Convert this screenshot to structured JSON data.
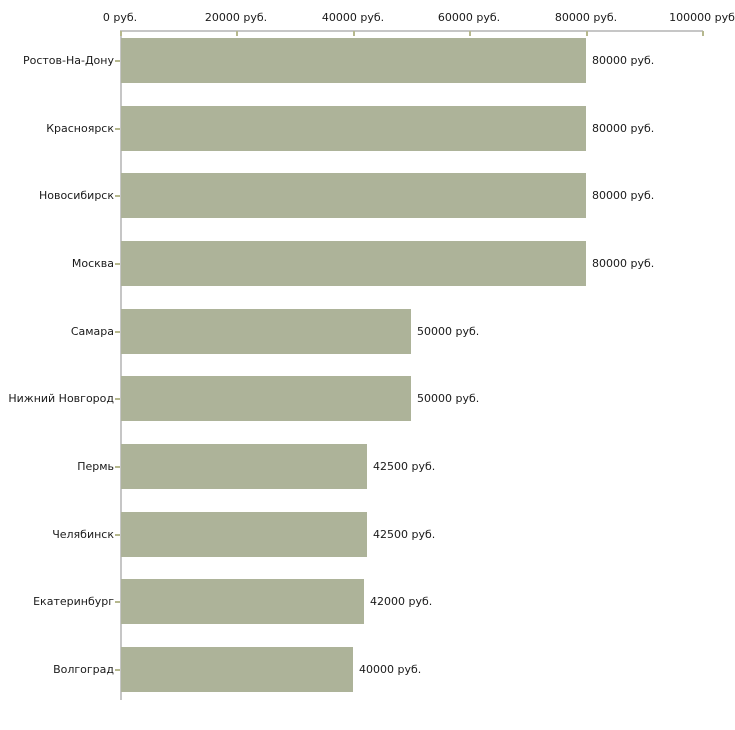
{
  "chart_data": {
    "type": "bar",
    "orientation": "horizontal",
    "categories": [
      "Ростов-На-Дону",
      "Красноярск",
      "Новосибирск",
      "Москва",
      "Самара",
      "Нижний Новгород",
      "Пермь",
      "Челябинск",
      "Екатеринбург",
      "Волгоград"
    ],
    "values": [
      80000,
      80000,
      80000,
      80000,
      50000,
      50000,
      42500,
      42500,
      42000,
      40000
    ],
    "value_labels": [
      "80000 руб.",
      "80000 руб.",
      "80000 руб.",
      "80000 руб.",
      "50000 руб.",
      "50000 руб.",
      "42500 руб.",
      "42500 руб.",
      "42000 руб.",
      "40000 руб."
    ],
    "x_axis": {
      "position": "top",
      "range": [
        0,
        100000
      ],
      "ticks": [
        0,
        20000,
        40000,
        60000,
        80000,
        100000
      ],
      "tick_labels": [
        "0 руб.",
        "20000 руб.",
        "40000 руб.",
        "60000 руб.",
        "80000 руб.",
        "100000 руб"
      ]
    },
    "grid": false,
    "legend": false,
    "colors": {
      "bar": "#adb399",
      "axis": "#c6c6c6",
      "tick": "#b6b88e",
      "text": "#1a1a1a",
      "background": "#ffffff"
    }
  }
}
